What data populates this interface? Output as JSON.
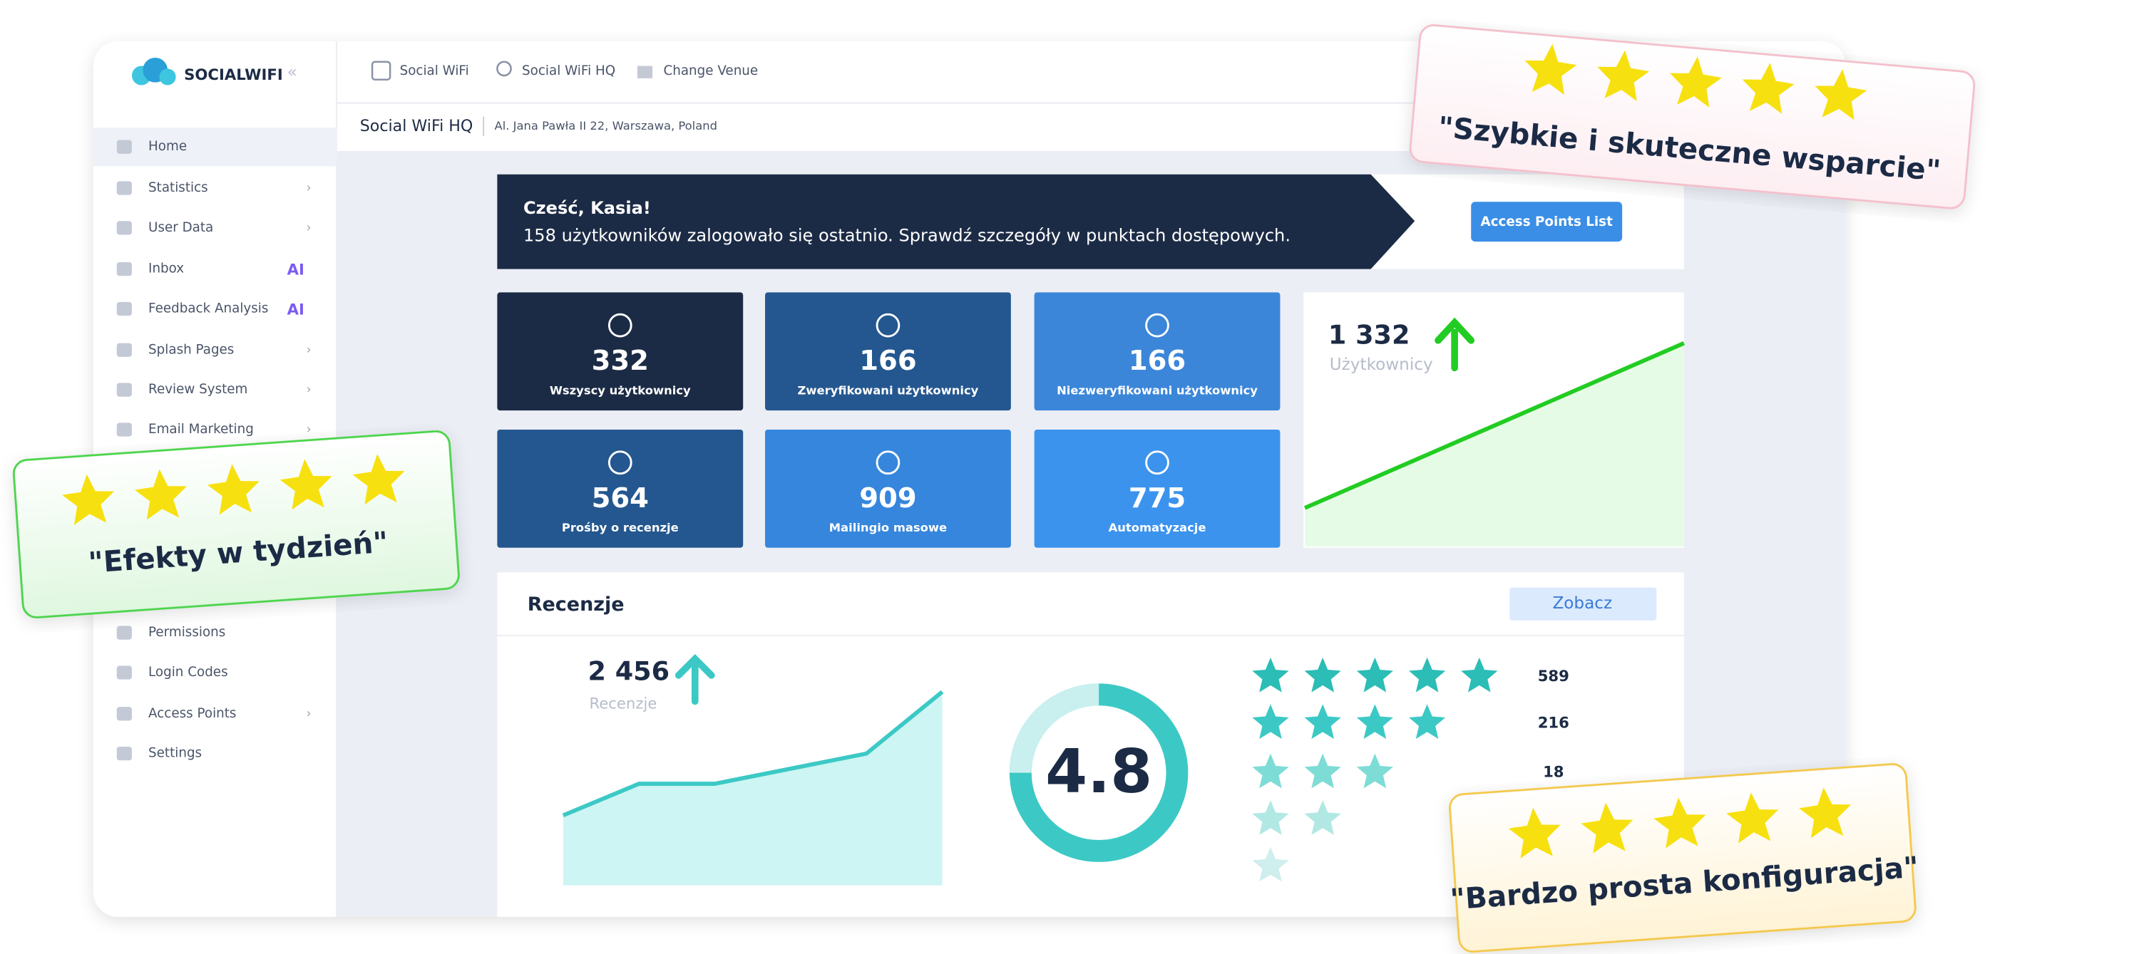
{
  "logo": "SOCIALWIFI",
  "sidebar": [
    "Home",
    "Statistics",
    "User Data",
    "Inbox",
    "Feedback Analysis",
    "Splash Pages",
    "Review System",
    "Email Marketing",
    "Permissions",
    "Login Codes",
    "Access Points",
    "Settings"
  ],
  "ai_badge": "AI",
  "nav": [
    "Social WiFi",
    "Social WiFi HQ",
    "Change Venue"
  ],
  "header": {
    "venue": "Social WiFi HQ",
    "address": "Al. Jana Pawła II 22, Warszawa, Poland"
  },
  "banner": {
    "greeting": "Cześć, Kasia!",
    "message": "158 użytkowników zalogowało się ostatnio. Sprawdź szczegóły w punktach dostępowych.",
    "button": "Access Points List"
  },
  "stats": [
    {
      "value": "332",
      "label": "Wszyscy użytkownicy"
    },
    {
      "value": "166",
      "label": "Zweryfikowani użytkownicy"
    },
    {
      "value": "166",
      "label": "Niezweryfikowani użytkownicy"
    },
    {
      "value": "564",
      "label": "Prośby o recenzje"
    },
    {
      "value": "909",
      "label": "Mailingio masowe"
    },
    {
      "value": "775",
      "label": "Automatyzacje"
    }
  ],
  "users": {
    "value": "1 332",
    "label": "Użytkownicy",
    "trend": [
      28,
      148
    ]
  },
  "reviews": {
    "title": "Recenzje",
    "button": "Zobacz",
    "total": "2 456",
    "total_label": "Recenzje",
    "trend": [
      51,
      74,
      74,
      85,
      96,
      141
    ],
    "rating": "4.8",
    "counts": [
      "589",
      "216",
      "18"
    ]
  },
  "badges": [
    "\"Szybkie i skuteczne wsparcie\"",
    "\"Efekty w tydzień\"",
    "\"Bardzo prosta konfiguracja\""
  ]
}
